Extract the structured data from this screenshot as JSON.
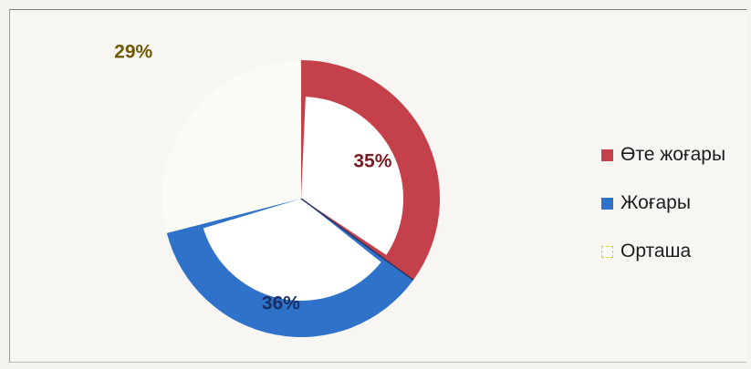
{
  "chart_data": {
    "type": "pie",
    "title": "",
    "categories": [
      "Өте жоғары",
      "Жоғары",
      "Орташа"
    ],
    "values": [
      35,
      36,
      29
    ],
    "data_labels": [
      "35%",
      "36%",
      "29%"
    ],
    "start_angle_deg": 0,
    "direction": "clockwise",
    "legend_position": "right",
    "colors": {
      "Өте жоғары": "#c4404a",
      "Жоғары": "#2f72c9",
      "Орташа": "#fbfbf6"
    },
    "inner_fill": "#ffffff",
    "label_colors": [
      "#7a1a22",
      "#1a2f66",
      "#6e5a00"
    ]
  }
}
